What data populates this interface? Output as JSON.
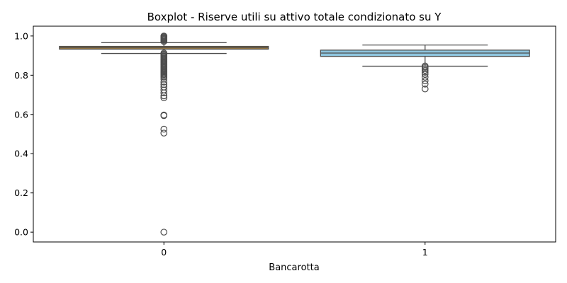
{
  "chart_data": {
    "type": "boxplot",
    "title": "Boxplot - Riserve utili su attivo totale condizionato su Y",
    "xlabel": "Bancarotta",
    "ylabel": "",
    "categories": [
      "0",
      "1"
    ],
    "ylim": [
      -0.05,
      1.05
    ],
    "yticks": [
      0.0,
      0.2,
      0.4,
      0.6,
      0.8,
      1.0
    ],
    "ytick_labels": [
      "0.0",
      "0.2",
      "0.4",
      "0.6",
      "0.8",
      "1.0"
    ],
    "grid": false,
    "boxes": [
      {
        "category": "0",
        "color": "#b3873f",
        "q1": 0.933,
        "median": 0.94,
        "q3": 0.947,
        "whisker_low": 0.911,
        "whisker_high": 0.966,
        "outliers": [
          1.0,
          0.997,
          0.993,
          0.989,
          0.985,
          0.981,
          0.977,
          0.972,
          0.913,
          0.908,
          0.903,
          0.898,
          0.893,
          0.888,
          0.883,
          0.878,
          0.873,
          0.868,
          0.863,
          0.858,
          0.853,
          0.848,
          0.843,
          0.838,
          0.833,
          0.828,
          0.823,
          0.818,
          0.813,
          0.808,
          0.803,
          0.797,
          0.79,
          0.78,
          0.765,
          0.752,
          0.74,
          0.725,
          0.71,
          0.695,
          0.685,
          0.597,
          0.594,
          0.525,
          0.505,
          0.0
        ]
      },
      {
        "category": "1",
        "color": "#8ec5de",
        "q1": 0.896,
        "median": 0.913,
        "q3": 0.928,
        "whisker_low": 0.846,
        "whisker_high": 0.954,
        "outliers": [
          0.847,
          0.84,
          0.833,
          0.825,
          0.815,
          0.805,
          0.79,
          0.772,
          0.755,
          0.73
        ]
      }
    ]
  }
}
